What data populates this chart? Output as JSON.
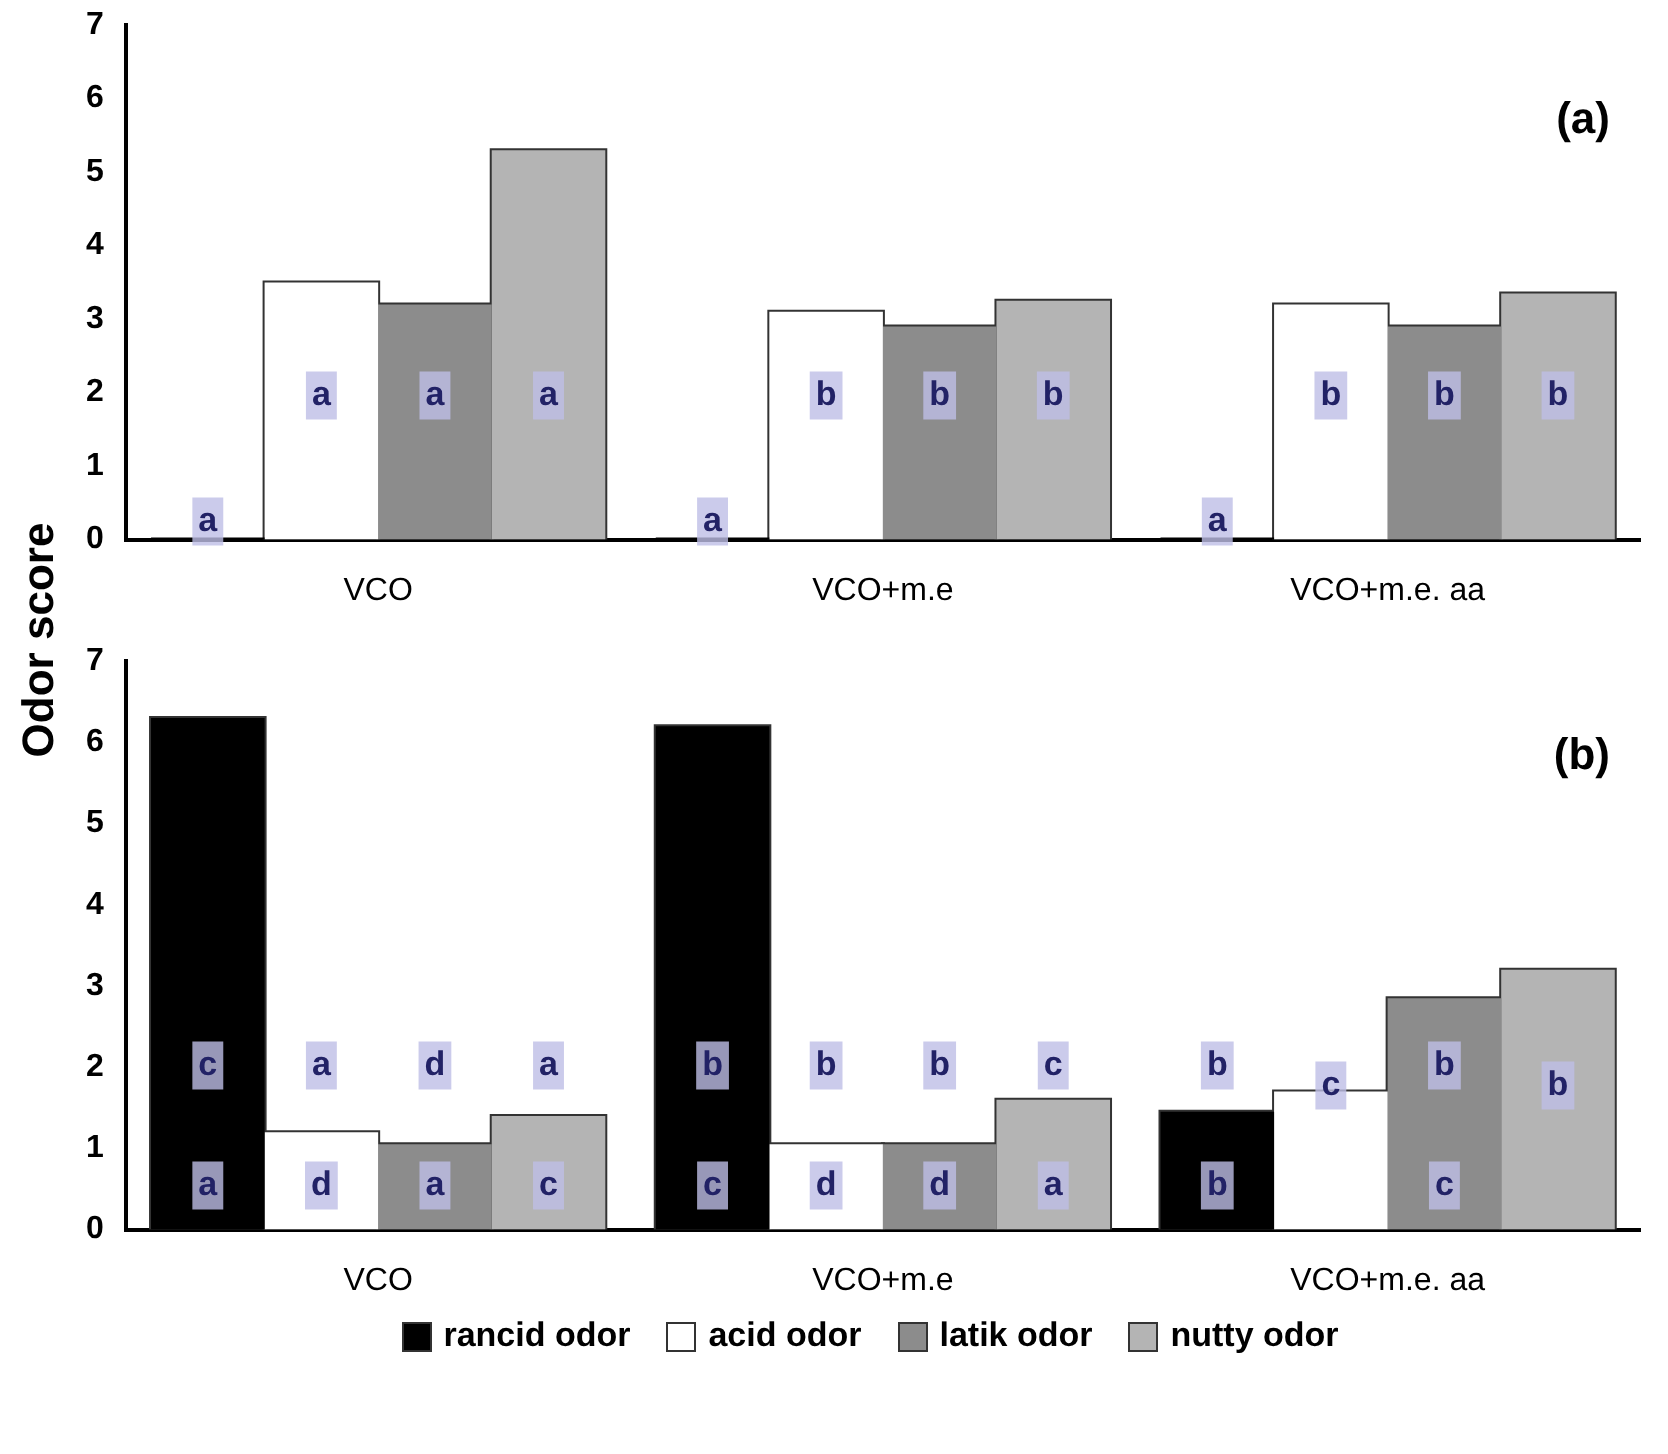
{
  "chart_data": [
    {
      "type": "bar",
      "title": "(a)",
      "ylabel": "Odor score",
      "categories": [
        "VCO",
        "VCO+m.e",
        "VCO+m.e. aa"
      ],
      "ylim": [
        0,
        7
      ],
      "yticks": [
        0,
        1,
        2,
        3,
        4,
        5,
        6,
        7
      ],
      "grid": false,
      "legend": false,
      "series": [
        {
          "color": "#000000",
          "values": [
            0,
            0,
            0
          ],
          "value_labels": [
            "a",
            "a",
            "a"
          ]
        },
        {
          "color": "#ffffff",
          "values": [
            3.5,
            3.1,
            3.2
          ],
          "value_labels": [
            "a",
            "b",
            "b"
          ]
        },
        {
          "color": "#8c8c8c",
          "values": [
            3.2,
            2.9,
            2.9
          ],
          "value_labels": [
            "a",
            "b",
            "b"
          ]
        },
        {
          "color": "#b4b4b4",
          "values": [
            5.3,
            3.25,
            3.35
          ],
          "value_labels": [
            "a",
            "b",
            "b"
          ]
        }
      ]
    },
    {
      "type": "bar",
      "title": "(b)",
      "categories": [
        "VCO",
        "VCO+m.e",
        "VCO+m.e. aa"
      ],
      "ylim": [
        0,
        7
      ],
      "yticks": [
        0,
        1,
        2,
        3,
        4,
        5,
        6,
        7
      ],
      "grid": false,
      "legend": "bottom",
      "series": [
        {
          "name": "rancid odor",
          "color": "#000000",
          "values": [
            6.3,
            6.2,
            1.45
          ],
          "value_labels": [
            "c a",
            "b c",
            "b b"
          ]
        },
        {
          "name": "acid odor",
          "color": "#ffffff",
          "values": [
            1.2,
            1.05,
            1.7
          ],
          "value_labels": [
            "a d",
            "b d",
            "c"
          ]
        },
        {
          "name": "latik odor",
          "color": "#8c8c8c",
          "values": [
            1.05,
            1.05,
            2.85
          ],
          "value_labels": [
            "d a",
            "b d",
            "b c"
          ]
        },
        {
          "name": "nutty odor",
          "color": "#b4b4b4",
          "values": [
            1.4,
            1.6,
            3.2
          ],
          "value_labels": [
            "a c",
            "c a",
            "b"
          ]
        }
      ]
    }
  ]
}
